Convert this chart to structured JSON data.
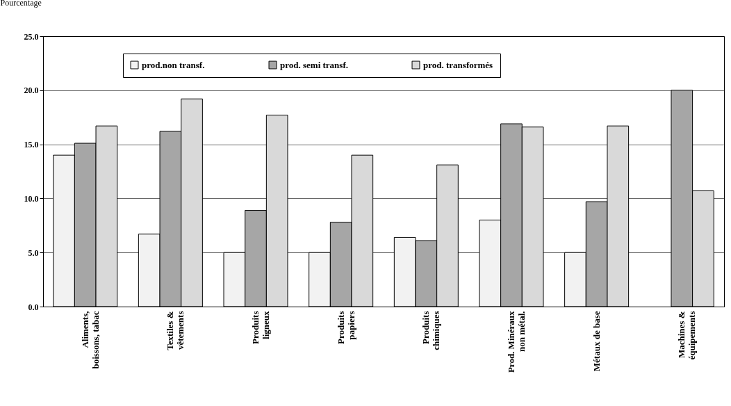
{
  "chart_data": {
    "type": "bar",
    "ylabel": "Pourcentage",
    "categories": [
      "Aliments,\nboissons, tabac",
      "Textiles &\nvêtements",
      "Produits\nligneux",
      "Produits\npapiers",
      "Produits\nchimiques",
      "Prod. Minéraux\nnon métal.",
      "Métaux de base",
      "Machines &\néquipements"
    ],
    "series": [
      {
        "name": "prod.non transf.",
        "color": "#f2f2f2",
        "values": [
          14.0,
          6.7,
          5.0,
          5.0,
          6.4,
          8.0,
          5.0,
          null
        ]
      },
      {
        "name": "prod. semi transf.",
        "color": "#a6a6a6",
        "values": [
          15.1,
          16.2,
          8.9,
          7.8,
          6.1,
          16.9,
          9.7,
          20.0
        ]
      },
      {
        "name": "prod. transformés",
        "color": "#d9d9d9",
        "values": [
          16.7,
          19.2,
          17.7,
          14.0,
          13.1,
          16.6,
          16.7,
          10.7
        ]
      }
    ],
    "ylim": [
      0,
      25
    ],
    "yticks": [
      {
        "value": 0,
        "label": "0.0"
      },
      {
        "value": 5,
        "label": "5.0"
      },
      {
        "value": 10,
        "label": "10.0"
      },
      {
        "value": 15,
        "label": "15.0"
      },
      {
        "value": 20,
        "label": "20.0"
      },
      {
        "value": 25,
        "label": "25.0"
      }
    ],
    "grid": "y",
    "legend": "top"
  }
}
